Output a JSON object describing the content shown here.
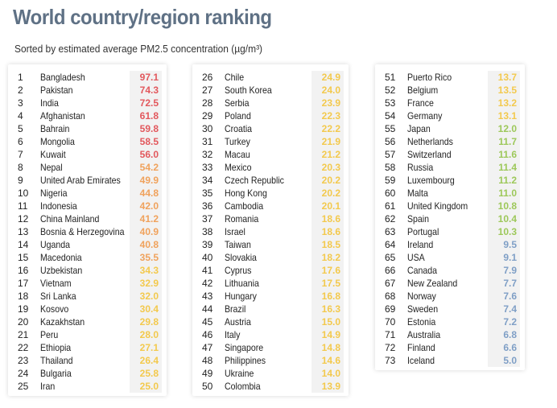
{
  "title": "World country/region ranking",
  "subtitle": "Sorted by estimated average PM2.5 concentration (µg/m³)",
  "colors": {
    "title": "#5f7185",
    "red": "#e2585d",
    "orange": "#f0a25c",
    "yellow": "#f3c94d",
    "green": "#9dc85a",
    "blue": "#7f9fc6",
    "value_bg": "#f2f2f2"
  },
  "columns": [
    [
      {
        "rank": "1",
        "country": "Bangladesh",
        "value": "97.1",
        "level": "red"
      },
      {
        "rank": "2",
        "country": "Pakistan",
        "value": "74.3",
        "level": "red"
      },
      {
        "rank": "3",
        "country": "India",
        "value": "72.5",
        "level": "red"
      },
      {
        "rank": "4",
        "country": "Afghanistan",
        "value": "61.8",
        "level": "red"
      },
      {
        "rank": "5",
        "country": "Bahrain",
        "value": "59.8",
        "level": "red"
      },
      {
        "rank": "6",
        "country": "Mongolia",
        "value": "58.5",
        "level": "red"
      },
      {
        "rank": "7",
        "country": "Kuwait",
        "value": "56.0",
        "level": "red"
      },
      {
        "rank": "8",
        "country": "Nepal",
        "value": "54.2",
        "level": "orange"
      },
      {
        "rank": "9",
        "country": "United Arab Emirates",
        "value": "49.9",
        "level": "orange"
      },
      {
        "rank": "10",
        "country": "Nigeria",
        "value": "44.8",
        "level": "orange"
      },
      {
        "rank": "11",
        "country": "Indonesia",
        "value": "42.0",
        "level": "orange"
      },
      {
        "rank": "12",
        "country": "China Mainland",
        "value": "41.2",
        "level": "orange"
      },
      {
        "rank": "13",
        "country": "Bosnia & Herzegovina",
        "value": "40.9",
        "level": "orange"
      },
      {
        "rank": "14",
        "country": "Uganda",
        "value": "40.8",
        "level": "orange"
      },
      {
        "rank": "15",
        "country": "Macedonia",
        "value": "35.5",
        "level": "orange"
      },
      {
        "rank": "16",
        "country": "Uzbekistan",
        "value": "34.3",
        "level": "yellow"
      },
      {
        "rank": "17",
        "country": "Vietnam",
        "value": "32.9",
        "level": "yellow"
      },
      {
        "rank": "18",
        "country": "Sri Lanka",
        "value": "32.0",
        "level": "yellow"
      },
      {
        "rank": "19",
        "country": "Kosovo",
        "value": "30.4",
        "level": "yellow"
      },
      {
        "rank": "20",
        "country": "Kazakhstan",
        "value": "29.8",
        "level": "yellow"
      },
      {
        "rank": "21",
        "country": "Peru",
        "value": "28.0",
        "level": "yellow"
      },
      {
        "rank": "22",
        "country": "Ethiopia",
        "value": "27.1",
        "level": "yellow"
      },
      {
        "rank": "23",
        "country": "Thailand",
        "value": "26.4",
        "level": "yellow"
      },
      {
        "rank": "24",
        "country": "Bulgaria",
        "value": "25.8",
        "level": "yellow"
      },
      {
        "rank": "25",
        "country": "Iran",
        "value": "25.0",
        "level": "yellow"
      }
    ],
    [
      {
        "rank": "26",
        "country": "Chile",
        "value": "24.9",
        "level": "yellow"
      },
      {
        "rank": "27",
        "country": "South Korea",
        "value": "24.0",
        "level": "yellow"
      },
      {
        "rank": "28",
        "country": "Serbia",
        "value": "23.9",
        "level": "yellow"
      },
      {
        "rank": "29",
        "country": "Poland",
        "value": "22.3",
        "level": "yellow"
      },
      {
        "rank": "30",
        "country": "Croatia",
        "value": "22.2",
        "level": "yellow"
      },
      {
        "rank": "31",
        "country": "Turkey",
        "value": "21.9",
        "level": "yellow"
      },
      {
        "rank": "32",
        "country": "Macau",
        "value": "21.2",
        "level": "yellow"
      },
      {
        "rank": "33",
        "country": "Mexico",
        "value": "20.3",
        "level": "yellow"
      },
      {
        "rank": "34",
        "country": "Czech Republic",
        "value": "20.2",
        "level": "yellow"
      },
      {
        "rank": "35",
        "country": "Hong Kong",
        "value": "20.2",
        "level": "yellow"
      },
      {
        "rank": "36",
        "country": "Cambodia",
        "value": "20.1",
        "level": "yellow"
      },
      {
        "rank": "37",
        "country": "Romania",
        "value": "18.6",
        "level": "yellow"
      },
      {
        "rank": "38",
        "country": "Israel",
        "value": "18.6",
        "level": "yellow"
      },
      {
        "rank": "39",
        "country": "Taiwan",
        "value": "18.5",
        "level": "yellow"
      },
      {
        "rank": "40",
        "country": "Slovakia",
        "value": "18.2",
        "level": "yellow"
      },
      {
        "rank": "41",
        "country": "Cyprus",
        "value": "17.6",
        "level": "yellow"
      },
      {
        "rank": "42",
        "country": "Lithuania",
        "value": "17.5",
        "level": "yellow"
      },
      {
        "rank": "43",
        "country": "Hungary",
        "value": "16.8",
        "level": "yellow"
      },
      {
        "rank": "44",
        "country": "Brazil",
        "value": "16.3",
        "level": "yellow"
      },
      {
        "rank": "45",
        "country": "Austria",
        "value": "15.0",
        "level": "yellow"
      },
      {
        "rank": "46",
        "country": "Italy",
        "value": "14.9",
        "level": "yellow"
      },
      {
        "rank": "47",
        "country": "Singapore",
        "value": "14.8",
        "level": "yellow"
      },
      {
        "rank": "48",
        "country": "Philippines",
        "value": "14.6",
        "level": "yellow"
      },
      {
        "rank": "49",
        "country": "Ukraine",
        "value": "14.0",
        "level": "yellow"
      },
      {
        "rank": "50",
        "country": "Colombia",
        "value": "13.9",
        "level": "yellow"
      }
    ],
    [
      {
        "rank": "51",
        "country": "Puerto Rico",
        "value": "13.7",
        "level": "yellow"
      },
      {
        "rank": "52",
        "country": "Belgium",
        "value": "13.5",
        "level": "yellow"
      },
      {
        "rank": "53",
        "country": "France",
        "value": "13.2",
        "level": "yellow"
      },
      {
        "rank": "54",
        "country": "Germany",
        "value": "13.1",
        "level": "yellow"
      },
      {
        "rank": "55",
        "country": "Japan",
        "value": "12.0",
        "level": "green"
      },
      {
        "rank": "56",
        "country": "Netherlands",
        "value": "11.7",
        "level": "green"
      },
      {
        "rank": "57",
        "country": "Switzerland",
        "value": "11.6",
        "level": "green"
      },
      {
        "rank": "58",
        "country": "Russia",
        "value": "11.4",
        "level": "green"
      },
      {
        "rank": "59",
        "country": "Luxembourg",
        "value": "11.2",
        "level": "green"
      },
      {
        "rank": "60",
        "country": "Malta",
        "value": "11.0",
        "level": "green"
      },
      {
        "rank": "61",
        "country": "United Kingdom",
        "value": "10.8",
        "level": "green"
      },
      {
        "rank": "62",
        "country": "Spain",
        "value": "10.4",
        "level": "green"
      },
      {
        "rank": "63",
        "country": "Portugal",
        "value": "10.3",
        "level": "green"
      },
      {
        "rank": "64",
        "country": "Ireland",
        "value": "9.5",
        "level": "blue"
      },
      {
        "rank": "65",
        "country": "USA",
        "value": "9.1",
        "level": "blue"
      },
      {
        "rank": "66",
        "country": "Canada",
        "value": "7.9",
        "level": "blue"
      },
      {
        "rank": "67",
        "country": "New Zealand",
        "value": "7.7",
        "level": "blue"
      },
      {
        "rank": "68",
        "country": "Norway",
        "value": "7.6",
        "level": "blue"
      },
      {
        "rank": "69",
        "country": "Sweden",
        "value": "7.4",
        "level": "blue"
      },
      {
        "rank": "70",
        "country": "Estonia",
        "value": "7.2",
        "level": "blue"
      },
      {
        "rank": "71",
        "country": "Australia",
        "value": "6.8",
        "level": "blue"
      },
      {
        "rank": "72",
        "country": "Finland",
        "value": "6.6",
        "level": "blue"
      },
      {
        "rank": "73",
        "country": "Iceland",
        "value": "5.0",
        "level": "blue"
      }
    ]
  ]
}
